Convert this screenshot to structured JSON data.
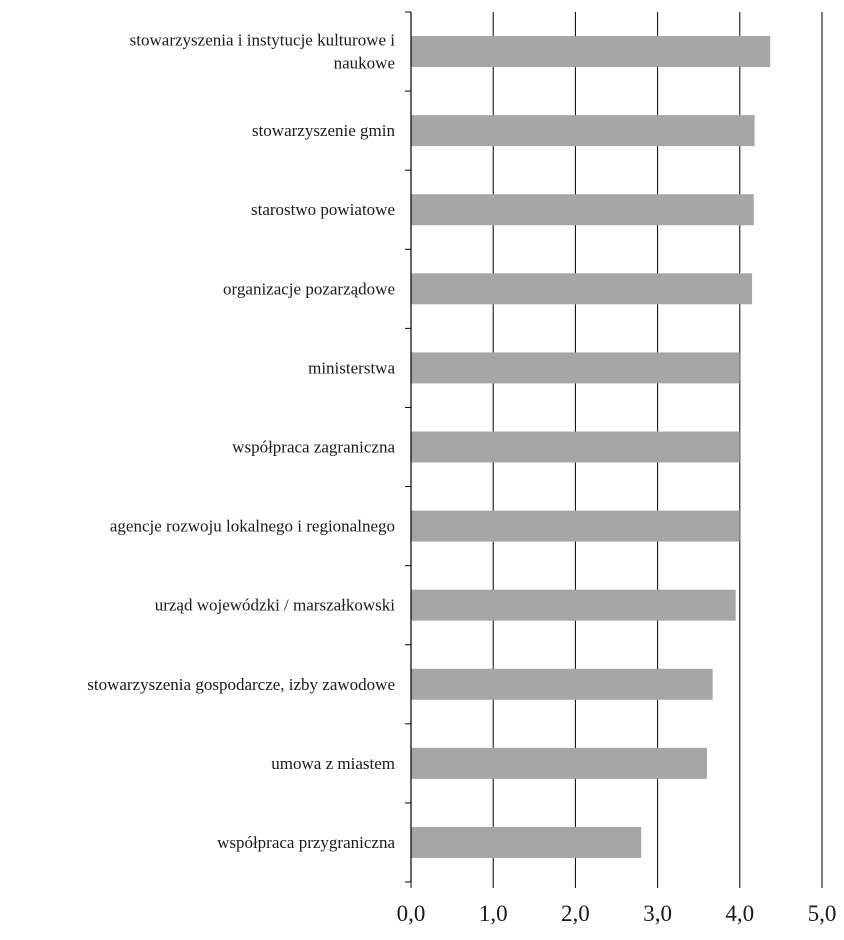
{
  "chart_data": {
    "type": "bar",
    "orientation": "horizontal",
    "categories": [
      [
        "stowarzyszenia i instytucje kulturowe i",
        "naukowe"
      ],
      [
        "stowarzyszenie gmin"
      ],
      [
        "starostwo powiatowe"
      ],
      [
        "organizacje pozarządowe"
      ],
      [
        "ministerstwa"
      ],
      [
        "współpraca zagraniczna"
      ],
      [
        "agencje rozwoju lokalnego i regionalnego"
      ],
      [
        "urząd wojewódzki / marszałkowski"
      ],
      [
        "stowarzyszenia gospodarcze, izby zawodowe"
      ],
      [
        "umowa z miastem"
      ],
      [
        "współpraca przygraniczna"
      ]
    ],
    "values": [
      4.37,
      4.18,
      4.17,
      4.15,
      4.0,
      4.0,
      4.0,
      3.95,
      3.67,
      3.6,
      2.8
    ],
    "xlim": [
      0,
      5
    ],
    "xticks": [
      "0,0",
      "1,0",
      "2,0",
      "3,0",
      "4,0",
      "5,0"
    ],
    "title": "",
    "xlabel": "",
    "ylabel": "",
    "grid": "vertical",
    "bar_color": "#a6a6a8"
  }
}
